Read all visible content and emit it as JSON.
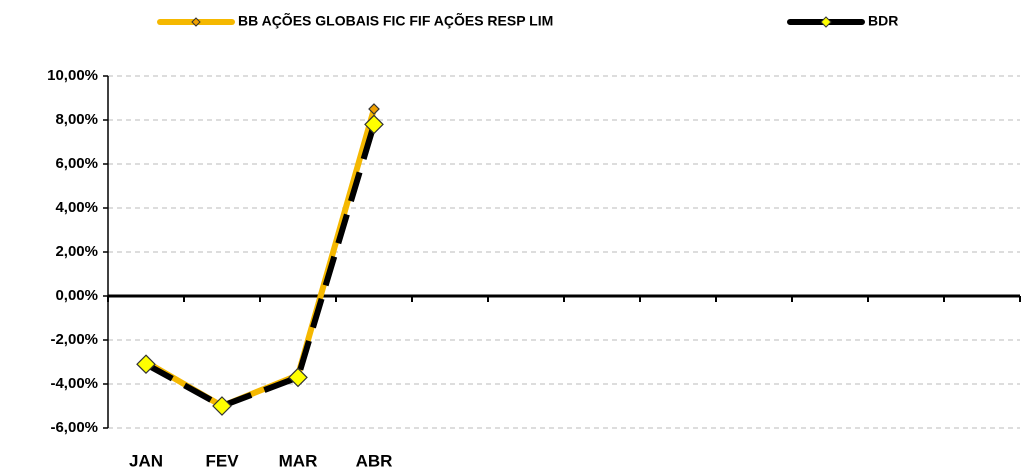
{
  "chart_data": {
    "type": "line",
    "categories": [
      "JAN",
      "FEV",
      "MAR",
      "ABR",
      null,
      null,
      null,
      null,
      null,
      null,
      null,
      null
    ],
    "series": [
      {
        "name": "BB AÇÕES GLOBAIS FIC FIF AÇÕES RESP LIM",
        "color": "#f5b800",
        "marker_color": "#f0a000",
        "values": [
          -3.0,
          -5.0,
          -3.6,
          8.5,
          null,
          null,
          null,
          null,
          null,
          null,
          null,
          null
        ]
      },
      {
        "name": "BDR",
        "color": "#000000",
        "marker_color": "#ffff00",
        "values": [
          -3.1,
          -5.0,
          -3.7,
          7.8,
          null,
          null,
          null,
          null,
          null,
          null,
          null,
          null
        ]
      }
    ],
    "ylim": [
      -6,
      10
    ],
    "yticks": [
      {
        "value": -6,
        "label": "-6,00%"
      },
      {
        "value": -4,
        "label": "-4,00%"
      },
      {
        "value": -2,
        "label": "-2,00%"
      },
      {
        "value": 0,
        "label": "0,00%"
      },
      {
        "value": 2,
        "label": "2,00%"
      },
      {
        "value": 4,
        "label": "4,00%"
      },
      {
        "value": 6,
        "label": "6,00%"
      },
      {
        "value": 8,
        "label": "8,00%"
      },
      {
        "value": 10,
        "label": "10,00%"
      }
    ],
    "grid": true,
    "legend": "top"
  }
}
